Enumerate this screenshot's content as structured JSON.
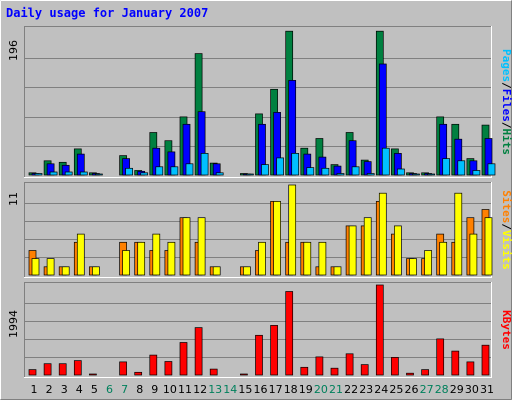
{
  "chart_data": [
    {
      "type": "bar",
      "title": "Daily usage for January 2007",
      "categories": [
        "1",
        "2",
        "3",
        "4",
        "5",
        "6",
        "7",
        "8",
        "9",
        "10",
        "11",
        "12",
        "13",
        "14",
        "15",
        "16",
        "17",
        "18",
        "19",
        "20",
        "21",
        "22",
        "23",
        "24",
        "25",
        "26",
        "27",
        "28",
        "29",
        "30",
        "31"
      ],
      "weekend_days": [
        "6",
        "7",
        "13",
        "14",
        "20",
        "21",
        "27",
        "28"
      ],
      "max_label": "196",
      "ylim": [
        0,
        196
      ],
      "legend": [
        "Pages",
        "/",
        "Files",
        "/",
        "Hits"
      ],
      "series": [
        {
          "name": "Hits",
          "color": "#008040",
          "values": [
            3,
            19,
            17,
            35,
            3,
            0,
            26,
            6,
            57,
            46,
            78,
            163,
            16,
            0,
            2,
            82,
            115,
            193,
            36,
            49,
            14,
            57,
            20,
            193,
            35,
            3,
            3,
            78,
            68,
            22,
            67
          ]
        },
        {
          "name": "Files",
          "color": "#0000FF",
          "values": [
            2,
            15,
            13,
            28,
            2,
            0,
            22,
            5,
            36,
            31,
            68,
            85,
            15,
            0,
            1,
            68,
            84,
            127,
            28,
            24,
            12,
            46,
            18,
            149,
            29,
            2,
            2,
            68,
            48,
            19,
            49
          ]
        },
        {
          "name": "Pages",
          "color": "#00C0FF",
          "values": [
            2,
            4,
            4,
            4,
            1,
            0,
            9,
            3,
            11,
            11,
            15,
            29,
            3,
            0,
            1,
            14,
            23,
            29,
            10,
            9,
            2,
            11,
            2,
            36,
            8,
            1,
            1,
            22,
            19,
            6,
            15
          ]
        }
      ]
    },
    {
      "type": "bar",
      "max_label": "11",
      "ylim": [
        0,
        11
      ],
      "legend": [
        "Sites",
        "/",
        "Visits"
      ],
      "series": [
        {
          "name": "Visits",
          "color": "#FF8000",
          "values": [
            3,
            1,
            1,
            4,
            1,
            0,
            4,
            4,
            3,
            3,
            7,
            4,
            1,
            0,
            1,
            3,
            9,
            4,
            4,
            1,
            1,
            6,
            6,
            9,
            5,
            2,
            2,
            5,
            4,
            7,
            8
          ]
        },
        {
          "name": "Sites",
          "color": "#FFFF00",
          "values": [
            2,
            2,
            1,
            5,
            1,
            0,
            3,
            4,
            5,
            4,
            7,
            7,
            1,
            0,
            1,
            4,
            9,
            11,
            4,
            4,
            1,
            6,
            7,
            10,
            6,
            2,
            3,
            4,
            10,
            5,
            7
          ]
        }
      ]
    },
    {
      "type": "bar",
      "max_label": "1994",
      "ylim": [
        0,
        1994
      ],
      "legend": [
        "KBytes"
      ],
      "series": [
        {
          "name": "KBytes",
          "color": "#FF0000",
          "values": [
            120,
            250,
            250,
            320,
            20,
            0,
            290,
            60,
            440,
            300,
            720,
            1050,
            130,
            0,
            20,
            880,
            1100,
            1850,
            170,
            400,
            150,
            470,
            230,
            1994,
            390,
            40,
            120,
            800,
            530,
            290,
            660
          ]
        }
      ]
    }
  ]
}
